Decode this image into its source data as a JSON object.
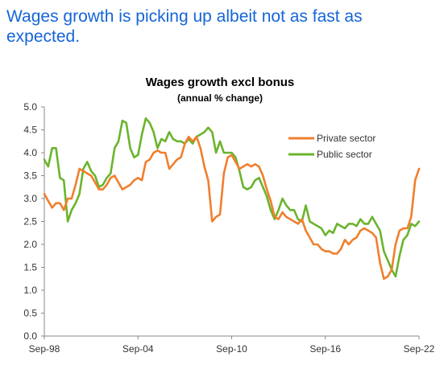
{
  "headline": "Wages growth is picking up albeit not as fast as expected.",
  "chart_data": {
    "type": "line",
    "title": "Wages growth excl bonus",
    "subtitle": "(annual % change)",
    "xlabel": "",
    "ylabel": "",
    "ylim": [
      0,
      5
    ],
    "yticks": [
      "0.0",
      "0.5",
      "1.0",
      "1.5",
      "2.0",
      "2.5",
      "3.0",
      "3.5",
      "4.0",
      "4.5",
      "5.0"
    ],
    "xlim": [
      1998.75,
      2022.75
    ],
    "xticks": [
      {
        "x": 1998.75,
        "label": "Sep-98"
      },
      {
        "x": 2004.75,
        "label": "Sep-04"
      },
      {
        "x": 2010.75,
        "label": "Sep-10"
      },
      {
        "x": 2016.75,
        "label": "Sep-16"
      },
      {
        "x": 2022.75,
        "label": "Sep-22"
      }
    ],
    "grid": false,
    "legend": "top-right",
    "series": [
      {
        "name": "Private sector",
        "color": "#f07f2d",
        "points": [
          [
            1998.75,
            3.1
          ],
          [
            1999.0,
            2.95
          ],
          [
            1999.25,
            2.8
          ],
          [
            1999.5,
            2.9
          ],
          [
            1999.75,
            2.9
          ],
          [
            2000.0,
            2.75
          ],
          [
            2000.25,
            3.0
          ],
          [
            2000.5,
            3.0
          ],
          [
            2000.75,
            3.3
          ],
          [
            2001.0,
            3.65
          ],
          [
            2001.25,
            3.6
          ],
          [
            2001.5,
            3.55
          ],
          [
            2001.75,
            3.5
          ],
          [
            2002.0,
            3.35
          ],
          [
            2002.25,
            3.2
          ],
          [
            2002.5,
            3.2
          ],
          [
            2002.75,
            3.3
          ],
          [
            2003.0,
            3.45
          ],
          [
            2003.25,
            3.5
          ],
          [
            2003.5,
            3.35
          ],
          [
            2003.75,
            3.2
          ],
          [
            2004.0,
            3.25
          ],
          [
            2004.25,
            3.3
          ],
          [
            2004.5,
            3.4
          ],
          [
            2004.75,
            3.45
          ],
          [
            2005.0,
            3.4
          ],
          [
            2005.25,
            3.8
          ],
          [
            2005.5,
            3.85
          ],
          [
            2005.75,
            4.0
          ],
          [
            2006.0,
            4.05
          ],
          [
            2006.25,
            4.0
          ],
          [
            2006.5,
            4.0
          ],
          [
            2006.75,
            3.65
          ],
          [
            2007.0,
            3.75
          ],
          [
            2007.25,
            3.85
          ],
          [
            2007.5,
            3.9
          ],
          [
            2007.75,
            4.2
          ],
          [
            2008.0,
            4.35
          ],
          [
            2008.25,
            4.25
          ],
          [
            2008.5,
            4.35
          ],
          [
            2008.75,
            4.1
          ],
          [
            2009.0,
            3.7
          ],
          [
            2009.25,
            3.4
          ],
          [
            2009.5,
            2.5
          ],
          [
            2009.75,
            2.6
          ],
          [
            2010.0,
            2.65
          ],
          [
            2010.25,
            3.55
          ],
          [
            2010.5,
            3.9
          ],
          [
            2010.75,
            3.95
          ],
          [
            2011.0,
            3.8
          ],
          [
            2011.25,
            3.65
          ],
          [
            2011.5,
            3.7
          ],
          [
            2011.75,
            3.75
          ],
          [
            2012.0,
            3.7
          ],
          [
            2012.25,
            3.75
          ],
          [
            2012.5,
            3.7
          ],
          [
            2012.75,
            3.5
          ],
          [
            2013.0,
            3.2
          ],
          [
            2013.25,
            2.95
          ],
          [
            2013.5,
            2.6
          ],
          [
            2013.75,
            2.55
          ],
          [
            2014.0,
            2.7
          ],
          [
            2014.25,
            2.6
          ],
          [
            2014.5,
            2.55
          ],
          [
            2014.75,
            2.5
          ],
          [
            2015.0,
            2.45
          ],
          [
            2015.25,
            2.55
          ],
          [
            2015.5,
            2.3
          ],
          [
            2015.75,
            2.15
          ],
          [
            2016.0,
            2.0
          ],
          [
            2016.25,
            2.0
          ],
          [
            2016.5,
            1.9
          ],
          [
            2016.75,
            1.85
          ],
          [
            2017.0,
            1.85
          ],
          [
            2017.25,
            1.8
          ],
          [
            2017.5,
            1.8
          ],
          [
            2017.75,
            1.9
          ],
          [
            2018.0,
            2.1
          ],
          [
            2018.25,
            2.0
          ],
          [
            2018.5,
            2.1
          ],
          [
            2018.75,
            2.15
          ],
          [
            2019.0,
            2.3
          ],
          [
            2019.25,
            2.35
          ],
          [
            2019.5,
            2.3
          ],
          [
            2019.75,
            2.25
          ],
          [
            2020.0,
            2.15
          ],
          [
            2020.25,
            1.6
          ],
          [
            2020.5,
            1.25
          ],
          [
            2020.75,
            1.3
          ],
          [
            2021.0,
            1.45
          ],
          [
            2021.25,
            2.0
          ],
          [
            2021.5,
            2.3
          ],
          [
            2021.75,
            2.35
          ],
          [
            2022.0,
            2.35
          ],
          [
            2022.25,
            2.6
          ],
          [
            2022.5,
            3.4
          ],
          [
            2022.75,
            3.65
          ]
        ]
      },
      {
        "name": "Public sector",
        "color": "#6ab42d",
        "points": [
          [
            1998.75,
            3.85
          ],
          [
            1999.0,
            3.7
          ],
          [
            1999.25,
            4.1
          ],
          [
            1999.5,
            4.1
          ],
          [
            1999.75,
            3.45
          ],
          [
            2000.0,
            3.4
          ],
          [
            2000.25,
            2.5
          ],
          [
            2000.5,
            2.75
          ],
          [
            2000.75,
            2.9
          ],
          [
            2001.0,
            3.1
          ],
          [
            2001.25,
            3.65
          ],
          [
            2001.5,
            3.8
          ],
          [
            2001.75,
            3.6
          ],
          [
            2002.0,
            3.5
          ],
          [
            2002.25,
            3.25
          ],
          [
            2002.5,
            3.3
          ],
          [
            2002.75,
            3.45
          ],
          [
            2003.0,
            3.55
          ],
          [
            2003.25,
            4.1
          ],
          [
            2003.5,
            4.25
          ],
          [
            2003.75,
            4.7
          ],
          [
            2004.0,
            4.65
          ],
          [
            2004.25,
            4.1
          ],
          [
            2004.5,
            3.9
          ],
          [
            2004.75,
            3.95
          ],
          [
            2005.0,
            4.4
          ],
          [
            2005.25,
            4.75
          ],
          [
            2005.5,
            4.65
          ],
          [
            2005.75,
            4.45
          ],
          [
            2006.0,
            4.1
          ],
          [
            2006.25,
            4.3
          ],
          [
            2006.5,
            4.25
          ],
          [
            2006.75,
            4.45
          ],
          [
            2007.0,
            4.3
          ],
          [
            2007.25,
            4.25
          ],
          [
            2007.5,
            4.25
          ],
          [
            2007.75,
            4.2
          ],
          [
            2008.0,
            4.3
          ],
          [
            2008.25,
            4.2
          ],
          [
            2008.5,
            4.35
          ],
          [
            2008.75,
            4.4
          ],
          [
            2009.0,
            4.45
          ],
          [
            2009.25,
            4.55
          ],
          [
            2009.5,
            4.45
          ],
          [
            2009.75,
            4.0
          ],
          [
            2010.0,
            4.25
          ],
          [
            2010.25,
            4.0
          ],
          [
            2010.5,
            4.0
          ],
          [
            2010.75,
            4.0
          ],
          [
            2011.0,
            3.9
          ],
          [
            2011.25,
            3.6
          ],
          [
            2011.5,
            3.25
          ],
          [
            2011.75,
            3.2
          ],
          [
            2012.0,
            3.25
          ],
          [
            2012.25,
            3.4
          ],
          [
            2012.5,
            3.45
          ],
          [
            2012.75,
            3.25
          ],
          [
            2013.0,
            3.05
          ],
          [
            2013.25,
            2.75
          ],
          [
            2013.5,
            2.55
          ],
          [
            2013.75,
            2.75
          ],
          [
            2014.0,
            3.0
          ],
          [
            2014.25,
            2.85
          ],
          [
            2014.5,
            2.75
          ],
          [
            2014.75,
            2.75
          ],
          [
            2015.0,
            2.55
          ],
          [
            2015.25,
            2.5
          ],
          [
            2015.5,
            2.85
          ],
          [
            2015.75,
            2.5
          ],
          [
            2016.0,
            2.45
          ],
          [
            2016.25,
            2.4
          ],
          [
            2016.5,
            2.35
          ],
          [
            2016.75,
            2.2
          ],
          [
            2017.0,
            2.3
          ],
          [
            2017.25,
            2.25
          ],
          [
            2017.5,
            2.45
          ],
          [
            2017.75,
            2.4
          ],
          [
            2018.0,
            2.35
          ],
          [
            2018.25,
            2.45
          ],
          [
            2018.5,
            2.45
          ],
          [
            2018.75,
            2.4
          ],
          [
            2019.0,
            2.55
          ],
          [
            2019.25,
            2.45
          ],
          [
            2019.5,
            2.45
          ],
          [
            2019.75,
            2.6
          ],
          [
            2020.0,
            2.45
          ],
          [
            2020.25,
            2.3
          ],
          [
            2020.5,
            1.85
          ],
          [
            2020.75,
            1.65
          ],
          [
            2021.0,
            1.45
          ],
          [
            2021.25,
            1.3
          ],
          [
            2021.5,
            1.75
          ],
          [
            2021.75,
            2.1
          ],
          [
            2022.0,
            2.2
          ],
          [
            2022.25,
            2.45
          ],
          [
            2022.5,
            2.4
          ],
          [
            2022.75,
            2.5
          ]
        ]
      }
    ]
  }
}
